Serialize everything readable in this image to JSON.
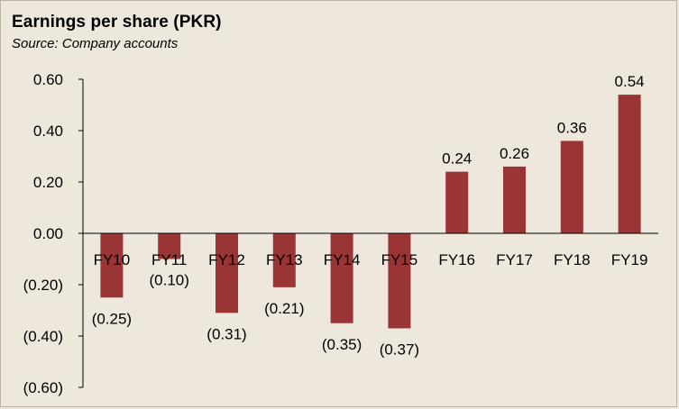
{
  "chart_data": {
    "type": "bar",
    "title": "Earnings per share (PKR)",
    "subtitle": "Source: Company accounts",
    "categories": [
      "FY10",
      "FY11",
      "FY12",
      "FY13",
      "FY14",
      "FY15",
      "FY16",
      "FY17",
      "FY18",
      "FY19"
    ],
    "values": [
      -0.25,
      -0.1,
      -0.31,
      -0.21,
      -0.35,
      -0.37,
      0.24,
      0.26,
      0.36,
      0.54
    ],
    "data_labels": [
      "(0.25)",
      "(0.10)",
      "(0.31)",
      "(0.21)",
      "(0.35)",
      "(0.37)",
      "0.24",
      "0.26",
      "0.36",
      "0.54"
    ],
    "yticks": [
      0.6,
      0.4,
      0.2,
      0.0,
      -0.2,
      -0.4,
      -0.6
    ],
    "ytick_labels": [
      "0.60",
      "0.40",
      "0.20",
      "0.00",
      "(0.20)",
      "(0.40)",
      "(0.60)"
    ],
    "ylim": [
      -0.6,
      0.6
    ],
    "xlabel": "",
    "ylabel": "",
    "grid": false,
    "legend": "none",
    "colors": {
      "bar": "#9b3535",
      "background": "#ede7dc",
      "axis": "#000000"
    }
  }
}
